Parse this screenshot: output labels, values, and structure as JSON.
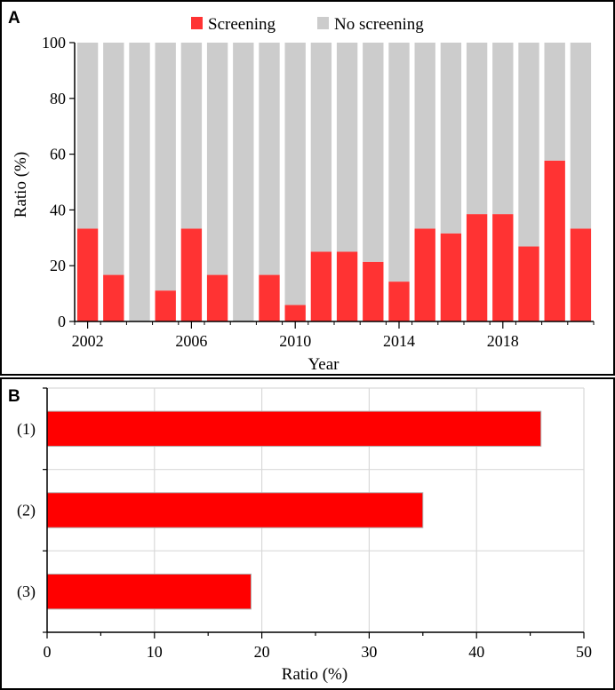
{
  "chart_data": [
    {
      "panel": "A",
      "type": "bar",
      "stacked": true,
      "x": [
        2002,
        2003,
        2004,
        2005,
        2006,
        2007,
        2008,
        2009,
        2010,
        2011,
        2012,
        2013,
        2014,
        2015,
        2016,
        2017,
        2018,
        2019,
        2020,
        2021
      ],
      "series": [
        {
          "name": "Screening",
          "color": "#ff3333",
          "values": [
            33.3,
            16.7,
            0,
            11.1,
            33.3,
            16.7,
            0,
            16.7,
            5.9,
            25,
            25,
            21.4,
            14.3,
            33.3,
            31.6,
            38.5,
            38.5,
            26.9,
            57.7,
            33.3
          ]
        },
        {
          "name": "No screening",
          "color": "#cccccc",
          "values": [
            66.7,
            83.3,
            100,
            88.9,
            66.7,
            83.3,
            100,
            83.3,
            94.1,
            75,
            75,
            78.6,
            85.7,
            66.7,
            68.4,
            61.5,
            61.5,
            73.1,
            42.3,
            66.7
          ]
        }
      ],
      "xticks": [
        "2002",
        "2006",
        "2010",
        "2014",
        "2018"
      ],
      "xlabel": "Year",
      "ylabel": "Ratio (%)",
      "ylim": [
        0,
        100
      ],
      "yticks": [
        "0",
        "20",
        "40",
        "60",
        "80",
        "100"
      ],
      "legend": "top"
    },
    {
      "panel": "B",
      "type": "bar",
      "orientation": "horizontal",
      "categories": [
        "(1)",
        "(2)",
        "(3)"
      ],
      "values": [
        46,
        35,
        19
      ],
      "color": "#ff0000",
      "xlabel": "Ratio (%)",
      "xlim": [
        0,
        50
      ],
      "xticks": [
        "0",
        "10",
        "20",
        "30",
        "40",
        "50"
      ],
      "grid": true
    }
  ]
}
